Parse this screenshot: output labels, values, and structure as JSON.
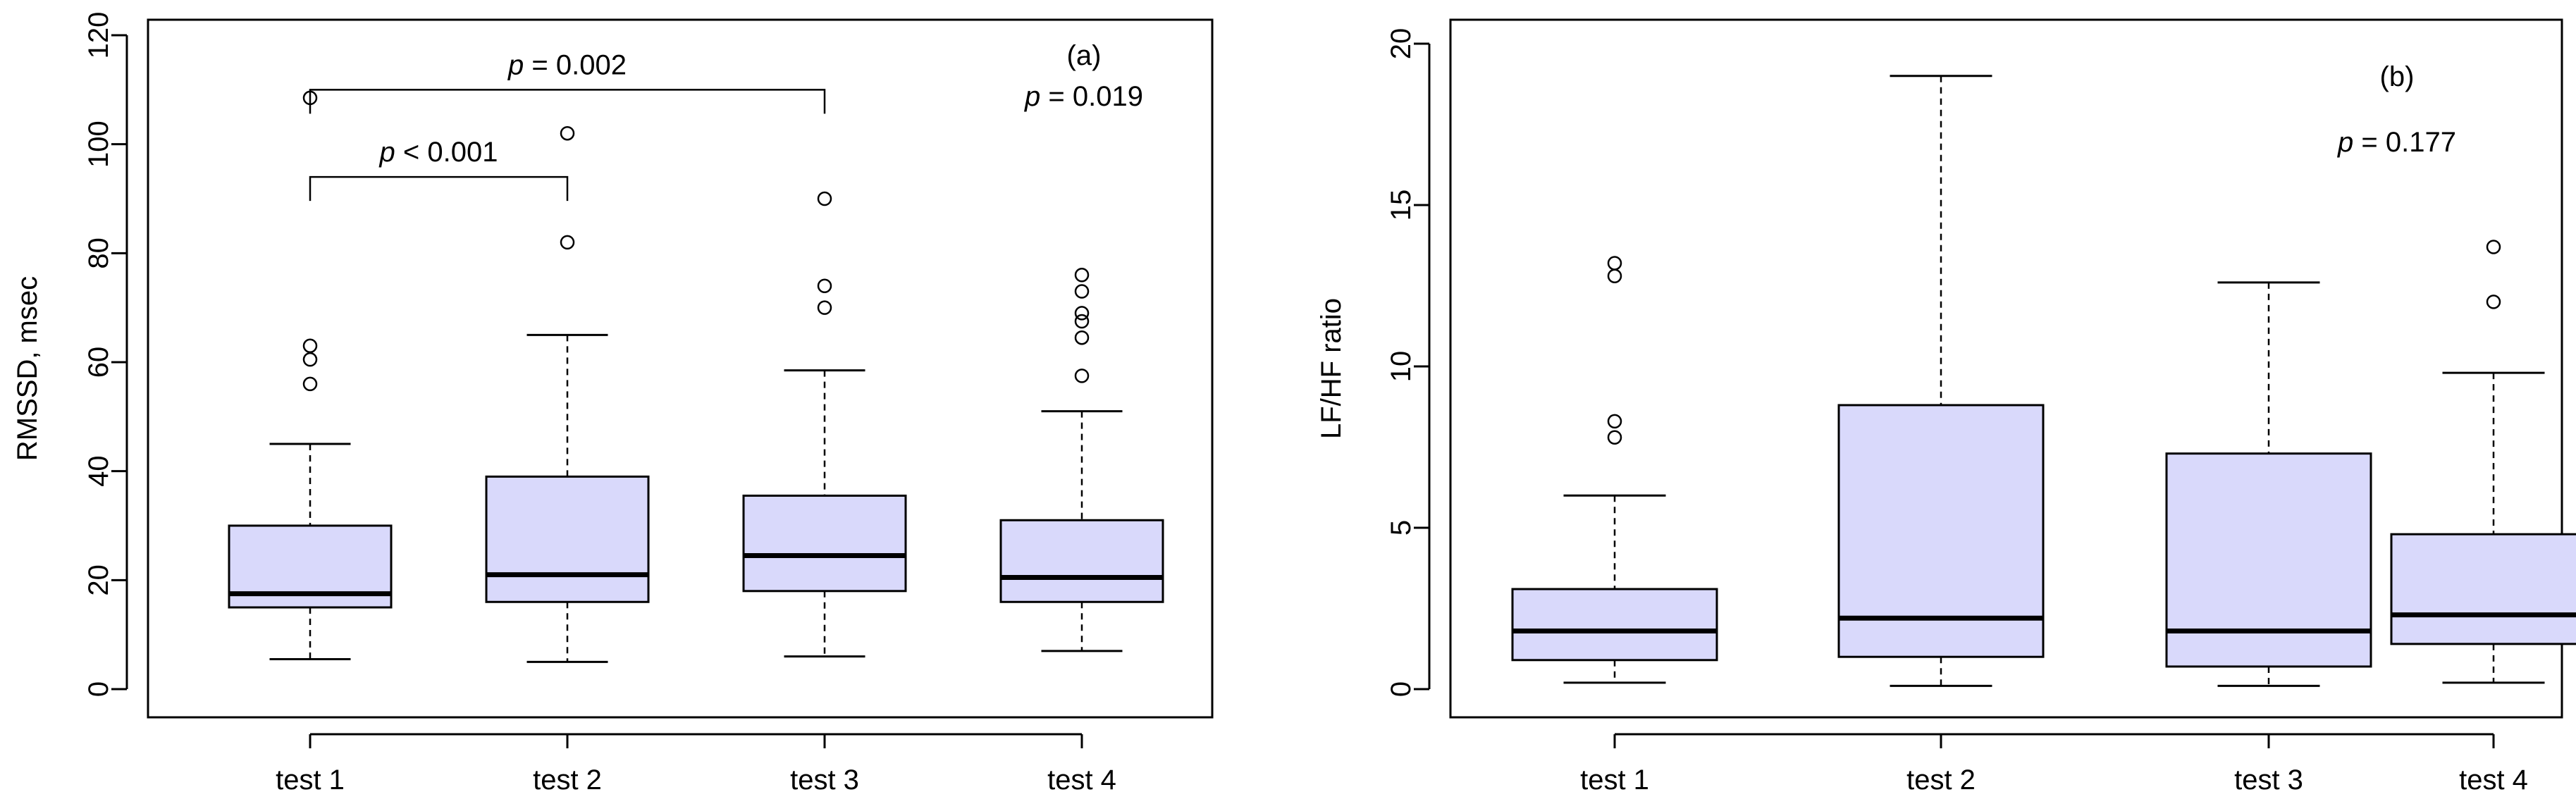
{
  "chart_data": [
    {
      "id": "a",
      "type": "boxplot",
      "panel_label": "(a)",
      "ylabel": "RMSSD, msec",
      "xlabel": "",
      "ylim": [
        0,
        120
      ],
      "yticks": [
        0,
        20,
        40,
        60,
        80,
        100,
        120
      ],
      "categories": [
        "test 1",
        "test 2",
        "test 3",
        "test 4"
      ],
      "box_color": "#d9d9fb",
      "boxes": [
        {
          "name": "test 1",
          "whisker_low": 5.5,
          "q1": 15,
          "median": 17.5,
          "q3": 30,
          "whisker_high": 45,
          "outliers": [
            56,
            60.5,
            63,
            108.5
          ]
        },
        {
          "name": "test 2",
          "whisker_low": 5,
          "q1": 16,
          "median": 21,
          "q3": 39,
          "whisker_high": 65,
          "outliers": [
            82,
            102
          ]
        },
        {
          "name": "test 3",
          "whisker_low": 6,
          "q1": 18,
          "median": 24.5,
          "q3": 35.5,
          "whisker_high": 58.5,
          "outliers": [
            70,
            74,
            90
          ]
        },
        {
          "name": "test 4",
          "whisker_low": 7,
          "q1": 16,
          "median": 20.5,
          "q3": 31,
          "whisker_high": 51,
          "outliers": [
            57.5,
            64.5,
            67.5,
            69,
            73,
            76
          ]
        }
      ],
      "overall_p": {
        "p": "p",
        "text": " = 0.019"
      },
      "brackets": [
        {
          "from": "test 1",
          "to": "test 2",
          "level": 94,
          "p": "p",
          "text": " < 0.001"
        },
        {
          "from": "test 1",
          "to": "test 3",
          "level": 110,
          "p": "p",
          "text": "  = 0.002"
        }
      ]
    },
    {
      "id": "b",
      "type": "boxplot",
      "panel_label": "(b)",
      "ylabel": "LF/HF ratio",
      "xlabel": "",
      "ylim": [
        0,
        20
      ],
      "yticks": [
        0,
        5,
        10,
        15,
        20
      ],
      "categories": [
        "test 1",
        "test 2",
        "test 3",
        "test 4"
      ],
      "box_color": "#d9d9fb",
      "boxes": [
        {
          "name": "test 1",
          "whisker_low": 0.2,
          "q1": 0.9,
          "median": 1.8,
          "q3": 3.1,
          "whisker_high": 6.0,
          "outliers": [
            7.8,
            8.3,
            12.8,
            13.2
          ]
        },
        {
          "name": "test 2",
          "whisker_low": 0.1,
          "q1": 1.0,
          "median": 2.2,
          "q3": 8.8,
          "whisker_high": 19.0,
          "outliers": []
        },
        {
          "name": "test 3",
          "whisker_low": 0.1,
          "q1": 0.7,
          "median": 1.8,
          "q3": 7.3,
          "whisker_high": 12.6,
          "outliers": []
        },
        {
          "name": "test 4",
          "whisker_low": 0.2,
          "q1": 1.4,
          "median": 2.3,
          "q3": 4.8,
          "whisker_high": 9.8,
          "outliers": [
            12.0,
            13.7
          ]
        }
      ],
      "overall_p": {
        "p": "p",
        "text": " = 0.177"
      },
      "brackets": []
    }
  ]
}
